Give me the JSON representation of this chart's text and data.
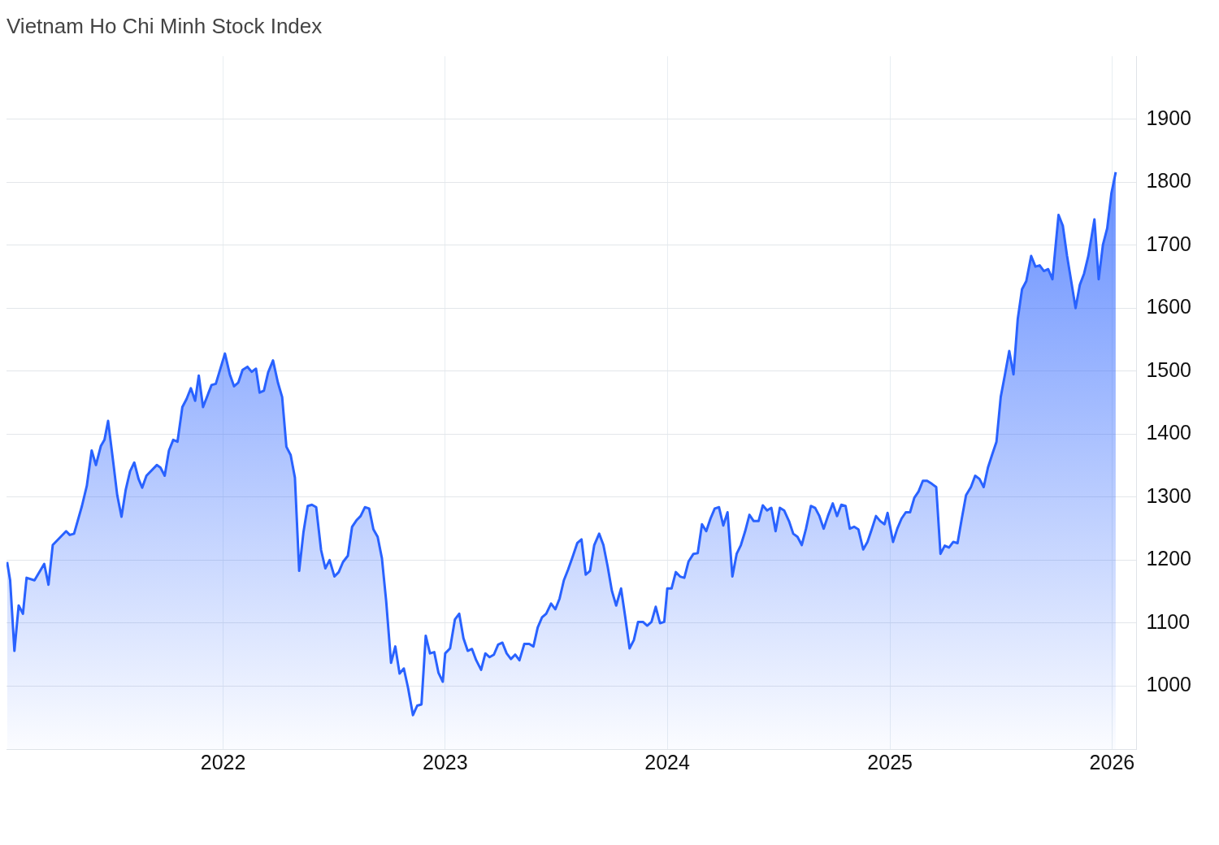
{
  "chart_data": {
    "type": "area",
    "title": "Vietnam Ho Chi Minh Stock Index",
    "xlim": [
      "2021-01-10",
      "2026-02-10"
    ],
    "xticks": [
      "2022",
      "2023",
      "2024",
      "2025",
      "2026"
    ],
    "ylim": [
      900,
      2000
    ],
    "yticks": [
      1000,
      1100,
      1200,
      1300,
      1400,
      1500,
      1600,
      1700,
      1800,
      1900
    ],
    "grid": true,
    "marker": "none",
    "line_style": "solid",
    "x": [
      "2021-01-11",
      "2021-01-16",
      "2021-01-23",
      "2021-01-30",
      "2021-02-06",
      "2021-02-12",
      "2021-02-25",
      "2021-03-13",
      "2021-03-20",
      "2021-03-27",
      "2021-04-18",
      "2021-04-24",
      "2021-05-01",
      "2021-05-14",
      "2021-05-22",
      "2021-05-30",
      "2021-06-06",
      "2021-06-14",
      "2021-06-20",
      "2021-06-26",
      "2021-07-05",
      "2021-07-11",
      "2021-07-18",
      "2021-07-25",
      "2021-08-01",
      "2021-08-08",
      "2021-08-15",
      "2021-08-21",
      "2021-08-28",
      "2021-09-14",
      "2021-09-20",
      "2021-09-27",
      "2021-10-04",
      "2021-10-11",
      "2021-10-18",
      "2021-10-26",
      "2021-11-02",
      "2021-11-09",
      "2021-11-16",
      "2021-11-22",
      "2021-11-29",
      "2021-12-13",
      "2021-12-20",
      "2022-01-04",
      "2022-01-12",
      "2022-01-19",
      "2022-01-26",
      "2022-02-02",
      "2022-02-10",
      "2022-02-17",
      "2022-02-24",
      "2022-03-02",
      "2022-03-09",
      "2022-03-16",
      "2022-03-24",
      "2022-04-01",
      "2022-04-08",
      "2022-04-15",
      "2022-04-22",
      "2022-04-29",
      "2022-05-06",
      "2022-05-13",
      "2022-05-20",
      "2022-05-27",
      "2022-06-03",
      "2022-06-11",
      "2022-06-18",
      "2022-06-25",
      "2022-07-03",
      "2022-07-10",
      "2022-07-17",
      "2022-07-25",
      "2022-08-01",
      "2022-08-08",
      "2022-08-15",
      "2022-08-22",
      "2022-08-29",
      "2022-09-05",
      "2022-09-12",
      "2022-09-19",
      "2022-09-26",
      "2022-10-04",
      "2022-10-11",
      "2022-10-18",
      "2022-10-25",
      "2022-11-01",
      "2022-11-09",
      "2022-11-16",
      "2022-11-23",
      "2022-11-30",
      "2022-12-07",
      "2022-12-14",
      "2022-12-21",
      "2022-12-28",
      "2023-01-01",
      "2023-01-09",
      "2023-01-17",
      "2023-01-24",
      "2023-01-31",
      "2023-02-07",
      "2023-02-14",
      "2023-02-21",
      "2023-03-01",
      "2023-03-08",
      "2023-03-15",
      "2023-03-22",
      "2023-03-29",
      "2023-04-05",
      "2023-04-12",
      "2023-04-19",
      "2023-04-26",
      "2023-05-03",
      "2023-05-11",
      "2023-05-19",
      "2023-05-26",
      "2023-06-02",
      "2023-06-09",
      "2023-06-16",
      "2023-06-24",
      "2023-07-01",
      "2023-07-08",
      "2023-07-15",
      "2023-07-22",
      "2023-07-29",
      "2023-08-06",
      "2023-08-13",
      "2023-08-20",
      "2023-08-27",
      "2023-09-03",
      "2023-09-11",
      "2023-09-18",
      "2023-09-25",
      "2023-10-02",
      "2023-10-09",
      "2023-10-17",
      "2023-10-24",
      "2023-10-31",
      "2023-11-07",
      "2023-11-14",
      "2023-11-22",
      "2023-11-29",
      "2023-12-06",
      "2023-12-13",
      "2023-12-20",
      "2023-12-27",
      "2024-01-01",
      "2024-01-08",
      "2024-01-15",
      "2024-01-22",
      "2024-01-29",
      "2024-02-05",
      "2024-02-13",
      "2024-02-20",
      "2024-02-27",
      "2024-03-05",
      "2024-03-12",
      "2024-03-19",
      "2024-03-26",
      "2024-04-02",
      "2024-04-09",
      "2024-04-17",
      "2024-04-24",
      "2024-05-01",
      "2024-05-08",
      "2024-05-15",
      "2024-05-22",
      "2024-05-30",
      "2024-06-06",
      "2024-06-13",
      "2024-06-20",
      "2024-06-27",
      "2024-07-04",
      "2024-07-11",
      "2024-07-19",
      "2024-07-26",
      "2024-08-02",
      "2024-08-09",
      "2024-08-16",
      "2024-08-24",
      "2024-08-31",
      "2024-09-07",
      "2024-09-14",
      "2024-09-21",
      "2024-09-29",
      "2024-10-06",
      "2024-10-13",
      "2024-10-20",
      "2024-10-27",
      "2024-11-03",
      "2024-11-10",
      "2024-11-18",
      "2024-11-25",
      "2024-12-02",
      "2024-12-09",
      "2024-12-16",
      "2024-12-23",
      "2024-12-28",
      "2025-01-06",
      "2025-01-13",
      "2025-01-20",
      "2025-01-27",
      "2025-02-03",
      "2025-02-10",
      "2025-02-17",
      "2025-02-24",
      "2025-03-03",
      "2025-03-11",
      "2025-03-18",
      "2025-03-25",
      "2025-04-01",
      "2025-04-08",
      "2025-04-15",
      "2025-04-22",
      "2025-04-29",
      "2025-05-06",
      "2025-05-14",
      "2025-05-21",
      "2025-05-28",
      "2025-06-04",
      "2025-06-11",
      "2025-06-18",
      "2025-06-25",
      "2025-07-02",
      "2025-07-09",
      "2025-07-16",
      "2025-07-23",
      "2025-07-30",
      "2025-08-06",
      "2025-08-13",
      "2025-08-21",
      "2025-08-28",
      "2025-09-04",
      "2025-09-11",
      "2025-09-18",
      "2025-09-25",
      "2025-10-05",
      "2025-10-12",
      "2025-10-19",
      "2025-10-26",
      "2025-11-02",
      "2025-11-09",
      "2025-11-16",
      "2025-11-23",
      "2025-12-03",
      "2025-12-10",
      "2025-12-17",
      "2025-12-24",
      "2025-12-31",
      "2026-01-07"
    ],
    "series": [
      {
        "color": "#2962ff",
        "values": [
          1197,
          1168,
          1056,
          1128,
          1115,
          1172,
          1168,
          1194,
          1161,
          1224,
          1246,
          1240,
          1242,
          1286,
          1318,
          1374,
          1351,
          1381,
          1391,
          1421,
          1351,
          1303,
          1269,
          1312,
          1341,
          1355,
          1329,
          1315,
          1334,
          1351,
          1347,
          1334,
          1374,
          1391,
          1388,
          1443,
          1456,
          1473,
          1453,
          1493,
          1443,
          1478,
          1480,
          1528,
          1495,
          1476,
          1482,
          1502,
          1507,
          1499,
          1504,
          1466,
          1469,
          1498,
          1517,
          1482,
          1459,
          1380,
          1367,
          1331,
          1183,
          1244,
          1286,
          1288,
          1284,
          1216,
          1187,
          1200,
          1174,
          1181,
          1197,
          1207,
          1253,
          1263,
          1270,
          1284,
          1282,
          1249,
          1237,
          1203,
          1135,
          1037,
          1063,
          1020,
          1028,
          997,
          954,
          969,
          971,
          1080,
          1052,
          1054,
          1021,
          1007,
          1052,
          1060,
          1106,
          1115,
          1076,
          1056,
          1059,
          1041,
          1026,
          1052,
          1046,
          1050,
          1066,
          1069,
          1052,
          1043,
          1050,
          1041,
          1067,
          1067,
          1063,
          1093,
          1109,
          1115,
          1131,
          1122,
          1139,
          1168,
          1185,
          1204,
          1227,
          1233,
          1177,
          1183,
          1224,
          1242,
          1224,
          1190,
          1151,
          1128,
          1155,
          1109,
          1060,
          1073,
          1102,
          1102,
          1096,
          1102,
          1126,
          1100,
          1102,
          1155,
          1155,
          1181,
          1174,
          1172,
          1198,
          1210,
          1211,
          1257,
          1246,
          1266,
          1282,
          1284,
          1255,
          1276,
          1174,
          1210,
          1224,
          1246,
          1272,
          1262,
          1262,
          1287,
          1279,
          1283,
          1246,
          1283,
          1279,
          1262,
          1242,
          1237,
          1224,
          1250,
          1286,
          1283,
          1270,
          1250,
          1270,
          1290,
          1270,
          1288,
          1286,
          1250,
          1253,
          1249,
          1217,
          1229,
          1249,
          1270,
          1262,
          1257,
          1275,
          1229,
          1250,
          1266,
          1276,
          1276,
          1299,
          1309,
          1326,
          1326,
          1321,
          1316,
          1210,
          1223,
          1220,
          1229,
          1227,
          1266,
          1303,
          1316,
          1334,
          1329,
          1316,
          1347,
          1368,
          1388,
          1459,
          1495,
          1532,
          1495,
          1583,
          1630,
          1643,
          1683,
          1666,
          1668,
          1659,
          1662,
          1646,
          1748,
          1731,
          1683,
          1642,
          1600,
          1637,
          1655,
          1683,
          1741,
          1646,
          1701,
          1727,
          1783,
          1816
        ]
      }
    ]
  }
}
